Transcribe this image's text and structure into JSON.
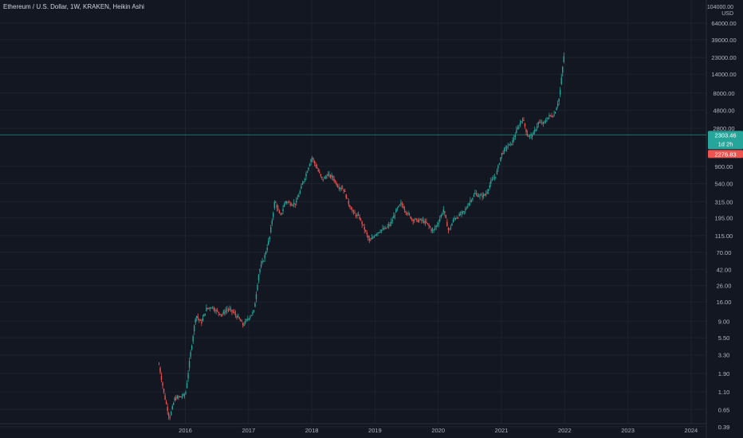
{
  "title": "Ethereum / U.S. Dollar, 1W, KRAKEN, Heikin Ashi",
  "price_scale": {
    "top_label": "104000.00",
    "currency": "USD",
    "ticks": [
      "64000.00",
      "39000.00",
      "23000.00",
      "14000.00",
      "8000.00",
      "4800.00",
      "2800.00",
      "900.00",
      "540.00",
      "315.00",
      "195.00",
      "115.00",
      "70.00",
      "42.00",
      "26.00",
      "16.00",
      "9.00",
      "5.50",
      "3.30",
      "1.90",
      "1.10",
      "0.65",
      "0.39"
    ]
  },
  "time_scale": {
    "ticks": [
      "2016",
      "2017",
      "2018",
      "2019",
      "2020",
      "2021",
      "2022",
      "2023",
      "2024"
    ]
  },
  "markers": {
    "last_price": "2303.46",
    "countdown": "1d 2h",
    "previous_close": "2276.83"
  },
  "colors": {
    "background": "#131722",
    "up": "#26a69a",
    "down": "#ef5350",
    "grid": "#1e222d",
    "text": "#b2b5be",
    "price_line": "#26a69a"
  },
  "chart_data": {
    "type": "candlestick",
    "style": "Heikin Ashi",
    "symbol": "Ethereum / U.S. Dollar",
    "interval": "1W",
    "exchange": "KRAKEN",
    "y_scale": "log",
    "ylim": [
      0.36,
      104000
    ],
    "xlim": [
      "2015-07",
      "2024-04"
    ],
    "grid": true,
    "series": [
      {
        "name": "Ethereum / U.S. Dollar",
        "points": [
          [
            "2015-08",
            2.5
          ],
          [
            "2015-09",
            1.0
          ],
          [
            "2015-10",
            0.5
          ],
          [
            "2015-11",
            0.9
          ],
          [
            "2015-12",
            0.95
          ],
          [
            "2016-01",
            1.0
          ],
          [
            "2016-02",
            3.5
          ],
          [
            "2016-03",
            11
          ],
          [
            "2016-04",
            8.5
          ],
          [
            "2016-05",
            13
          ],
          [
            "2016-06",
            14
          ],
          [
            "2016-07",
            12
          ],
          [
            "2016-08",
            11
          ],
          [
            "2016-09",
            13
          ],
          [
            "2016-10",
            12
          ],
          [
            "2016-11",
            10
          ],
          [
            "2016-12",
            8
          ],
          [
            "2017-01",
            10
          ],
          [
            "2017-02",
            12
          ],
          [
            "2017-03",
            40
          ],
          [
            "2017-04",
            60
          ],
          [
            "2017-05",
            110
          ],
          [
            "2017-06",
            330
          ],
          [
            "2017-07",
            200
          ],
          [
            "2017-08",
            320
          ],
          [
            "2017-09",
            300
          ],
          [
            "2017-10",
            300
          ],
          [
            "2017-11",
            480
          ],
          [
            "2017-12",
            750
          ],
          [
            "2018-01",
            1200
          ],
          [
            "2018-02",
            850
          ],
          [
            "2018-03",
            600
          ],
          [
            "2018-04",
            700
          ],
          [
            "2018-05",
            650
          ],
          [
            "2018-06",
            500
          ],
          [
            "2018-07",
            470
          ],
          [
            "2018-08",
            300
          ],
          [
            "2018-09",
            220
          ],
          [
            "2018-10",
            200
          ],
          [
            "2018-11",
            140
          ],
          [
            "2018-12",
            95
          ],
          [
            "2019-01",
            120
          ],
          [
            "2019-02",
            135
          ],
          [
            "2019-03",
            140
          ],
          [
            "2019-04",
            165
          ],
          [
            "2019-05",
            240
          ],
          [
            "2019-06",
            300
          ],
          [
            "2019-07",
            230
          ],
          [
            "2019-08",
            190
          ],
          [
            "2019-09",
            180
          ],
          [
            "2019-10",
            180
          ],
          [
            "2019-11",
            160
          ],
          [
            "2019-12",
            130
          ],
          [
            "2020-01",
            170
          ],
          [
            "2020-02",
            250
          ],
          [
            "2020-03",
            130
          ],
          [
            "2020-04",
            190
          ],
          [
            "2020-05",
            210
          ],
          [
            "2020-06",
            235
          ],
          [
            "2020-07",
            320
          ],
          [
            "2020-08",
            400
          ],
          [
            "2020-09",
            370
          ],
          [
            "2020-10",
            390
          ],
          [
            "2020-11",
            560
          ],
          [
            "2020-12",
            700
          ],
          [
            "2021-01",
            1300
          ],
          [
            "2021-02",
            1600
          ],
          [
            "2021-03",
            1800
          ],
          [
            "2021-04",
            2700
          ],
          [
            "2021-05",
            3800
          ],
          [
            "2021-06",
            2200
          ],
          [
            "2021-07",
            2300
          ],
          [
            "2021-08",
            3300
          ],
          [
            "2021-09",
            3200
          ],
          [
            "2021-10",
            4000
          ],
          [
            "2021-11",
            4200
          ],
          [
            "2021-12",
            7000
          ],
          [
            "2022-01",
            30000
          ]
        ]
      }
    ]
  }
}
